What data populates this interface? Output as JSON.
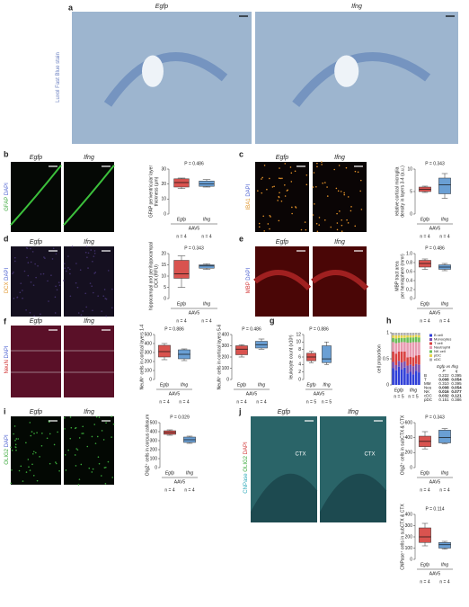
{
  "panels": [
    {
      "label": "a",
      "images": [
        "Egfp",
        "Ifng"
      ],
      "stain": [
        "Luxol Fast Blue stain"
      ],
      "stain_colors": [
        "#6a7fc0"
      ]
    },
    {
      "label": "b",
      "images": [
        "Egfp",
        "Ifng"
      ],
      "stain": [
        "GFAP",
        "DAPI"
      ],
      "stain_colors": [
        "#3aa83a",
        "#4a5fd0"
      ]
    },
    {
      "label": "c",
      "images": [
        "Egfp",
        "Ifng"
      ],
      "stain": [
        "IBA1",
        "DAPI"
      ],
      "stain_colors": [
        "#e0952a",
        "#4a5fd0"
      ]
    },
    {
      "label": "d",
      "images": [
        "Egfp",
        "Ifng"
      ],
      "stain": [
        "DCX",
        "DAPI"
      ],
      "stain_colors": [
        "#e0952a",
        "#4a5fd0"
      ]
    },
    {
      "label": "e",
      "images": [
        "Egfp",
        "Ifng"
      ],
      "stain": [
        "MBP",
        "DAPI"
      ],
      "stain_colors": [
        "#d03030",
        "#4a5fd0"
      ]
    },
    {
      "label": "f",
      "images": [
        "Egfp",
        "Ifng"
      ],
      "stain": [
        "NeuN",
        "DAPI"
      ],
      "stain_colors": [
        "#d03030",
        "#4a5fd0"
      ]
    },
    {
      "label": "g"
    },
    {
      "label": "h"
    },
    {
      "label": "i",
      "images": [
        "Egfp",
        "Ifng"
      ],
      "stain": [
        "OLIG2",
        "DAPI"
      ],
      "stain_colors": [
        "#3aa83a",
        "#4a5fd0"
      ]
    },
    {
      "label": "j",
      "images": [
        "Egfp",
        "Ifng"
      ],
      "stain": [
        "CNPase",
        "OLIG2",
        "DAPI"
      ],
      "stain_colors": [
        "#2aa8b8",
        "#3aa83a",
        "#d03030"
      ],
      "image_labels": [
        "CTX",
        "CTX"
      ]
    }
  ],
  "chart_data": [
    {
      "type": "box",
      "annotation": "P = 0.486",
      "ylabel": [
        "GFAP periventricular layer",
        "thickness (µm)"
      ],
      "categories": [
        "Egfp",
        "Ifng"
      ],
      "colors": [
        "#d9534f",
        "#6a9fd4"
      ],
      "group_label": "AAV5",
      "n_labels": [
        "n = 4",
        "n = 4"
      ],
      "min": [
        17,
        18
      ],
      "q1": [
        18,
        18.5
      ],
      "median": [
        21,
        20
      ],
      "q3": [
        23.5,
        22
      ],
      "max": [
        24,
        23
      ],
      "ylim": [
        0,
        30
      ],
      "yticks": [
        0,
        10,
        20,
        30
      ]
    },
    {
      "type": "box",
      "annotation": "P = 0.343",
      "ylabel": [
        "relative cortical microglia",
        "density in layers 3-4 (a.u.)"
      ],
      "categories": [
        "Egfp",
        "Ifng"
      ],
      "colors": [
        "#d9534f",
        "#6a9fd4"
      ],
      "group_label": "AAV5",
      "n_labels": [
        "n = 4",
        "n = 4"
      ],
      "min": [
        4.8,
        3.5
      ],
      "q1": [
        5,
        4.5
      ],
      "median": [
        5.5,
        6.5
      ],
      "q3": [
        6,
        8
      ],
      "max": [
        6.2,
        9
      ],
      "ylim": [
        0,
        10
      ],
      "yticks": [
        0,
        5,
        10
      ]
    },
    {
      "type": "box",
      "annotation": "P = 0.343",
      "ylabel": [
        "hippocampal and perihippocampal",
        "DCX (RFU)"
      ],
      "categories": [
        "Egfp",
        "Ifng"
      ],
      "colors": [
        "#d9534f",
        "#6a9fd4"
      ],
      "group_label": "AAV5",
      "n_labels": [
        "n = 4",
        "n = 4"
      ],
      "min": [
        5,
        13
      ],
      "q1": [
        9,
        13.5
      ],
      "median": [
        11,
        14.5
      ],
      "q3": [
        17,
        15
      ],
      "max": [
        19,
        15.5
      ],
      "ylim": [
        0,
        20
      ],
      "yticks": [
        0,
        5,
        10,
        15,
        20
      ]
    },
    {
      "type": "box",
      "annotation": "P = 0.486",
      "ylabel": [
        "MBP tract area",
        "per hemisphere (mm²)"
      ],
      "categories": [
        "Egfp",
        "Ifng"
      ],
      "colors": [
        "#d9534f",
        "#6a9fd4"
      ],
      "group_label": "AAV5",
      "n_labels": [
        "n = 4",
        "n = 4"
      ],
      "min": [
        0.65,
        0.62
      ],
      "q1": [
        0.7,
        0.65
      ],
      "median": [
        0.78,
        0.7
      ],
      "q3": [
        0.85,
        0.75
      ],
      "max": [
        0.88,
        0.78
      ],
      "ylim": [
        0,
        1
      ],
      "yticks": [
        0,
        0.2,
        0.4,
        0.6,
        0.8,
        {
          "value": 1,
          "label": "1.0"
        }
      ]
    },
    {
      "type": "box",
      "annotation": "P = 0.886",
      "ylabel": [
        "NeuN⁺ cells in cortical layers 1-4"
      ],
      "categories": [
        "Egfp",
        "Ifng"
      ],
      "colors": [
        "#d9534f",
        "#6a9fd4"
      ],
      "group_label": "AAV5",
      "n_labels": [
        "n = 4",
        "n = 4"
      ],
      "min": [
        220,
        210
      ],
      "q1": [
        250,
        230
      ],
      "median": [
        310,
        280
      ],
      "q3": [
        380,
        330
      ],
      "max": [
        400,
        340
      ],
      "ylim": [
        0,
        500
      ],
      "yticks": [
        0,
        100,
        200,
        300,
        400,
        500
      ]
    },
    {
      "type": "box",
      "annotation": "P = 0.486",
      "ylabel": [
        "NeuN⁺ cells in cortical layers 5-6"
      ],
      "categories": [
        "Egfp",
        "Ifng"
      ],
      "colors": [
        "#d9534f",
        "#6a9fd4"
      ],
      "group_label": "AAV5",
      "n_labels": [
        "n = 4",
        "n = 4"
      ],
      "min": [
        200,
        270
      ],
      "q1": [
        220,
        280
      ],
      "median": [
        270,
        310
      ],
      "q3": [
        300,
        340
      ],
      "max": [
        310,
        360
      ],
      "ylim": [
        0,
        400
      ],
      "yticks": [
        0,
        100,
        200,
        300,
        400
      ]
    },
    {
      "type": "box",
      "annotation": "P = 0.886",
      "ylabel": [
        "leukocyte count (x10³)"
      ],
      "categories": [
        "Egfp",
        "Ifng"
      ],
      "colors": [
        "#d9534f",
        "#6a9fd4"
      ],
      "group_label": "AAV5",
      "n_labels": [
        "n = 5",
        "n = 5"
      ],
      "min": [
        4.5,
        4
      ],
      "q1": [
        5,
        4.5
      ],
      "median": [
        6,
        5.5
      ],
      "q3": [
        7,
        9
      ],
      "max": [
        7.5,
        10
      ],
      "ylim": [
        0,
        12
      ],
      "yticks": [
        0,
        2,
        4,
        6,
        8,
        10,
        12
      ]
    },
    {
      "type": "stacked_bar",
      "ylabel": [
        "cell proportion"
      ],
      "categories": [
        null,
        null,
        null,
        null,
        null,
        null,
        null,
        null,
        null,
        null
      ],
      "group_names": [
        "Egfp",
        "Ifng"
      ],
      "n_labels": [
        "n = 5",
        "n = 5"
      ],
      "ylim": [
        0,
        1
      ],
      "yticks": [
        0,
        0.5,
        1
      ],
      "series": [
        {
          "name": "B cell",
          "color": "#2f3fd8",
          "values": [
            0.32,
            0.28,
            0.35,
            0.3,
            0.33,
            0.22,
            0.25,
            0.2,
            0.27,
            0.24
          ]
        },
        {
          "name": "Monocytes",
          "color": "#7b4fb0",
          "values": [
            0.12,
            0.1,
            0.11,
            0.13,
            0.12,
            0.15,
            0.14,
            0.16,
            0.13,
            0.15
          ]
        },
        {
          "name": "T cell",
          "color": "#d94040",
          "values": [
            0.2,
            0.22,
            0.18,
            0.21,
            0.19,
            0.16,
            0.15,
            0.17,
            0.16,
            0.18
          ]
        },
        {
          "name": "Neutrophil",
          "color": "#e89ab0",
          "values": [
            0.18,
            0.2,
            0.17,
            0.18,
            0.18,
            0.28,
            0.27,
            0.29,
            0.26,
            0.25
          ]
        },
        {
          "name": "NK cell",
          "color": "#6bbf59",
          "values": [
            0.08,
            0.09,
            0.09,
            0.08,
            0.08,
            0.1,
            0.1,
            0.09,
            0.1,
            0.09
          ]
        },
        {
          "name": "pDC",
          "color": "#e8d44d",
          "values": [
            0.05,
            0.06,
            0.05,
            0.05,
            0.05,
            0.04,
            0.04,
            0.04,
            0.04,
            0.04
          ]
        },
        {
          "name": "cDC",
          "color": "#b0b0b0",
          "values": [
            0.05,
            0.05,
            0.05,
            0.05,
            0.05,
            0.05,
            0.05,
            0.05,
            0.04,
            0.05
          ]
        }
      ],
      "table": {
        "header": "Egfp vs Ifng",
        "columns": [
          "P",
          "q"
        ],
        "rows": [
          [
            "B",
            "0.222",
            "0.395"
          ],
          [
            "T",
            "0.008",
            "0.054"
          ],
          [
            "MM",
            "0.310",
            "0.395"
          ],
          [
            "Neu",
            "0.008",
            "0.054"
          ],
          [
            "NK",
            "0.016",
            "0.077"
          ],
          [
            "cDC",
            "0.032",
            "0.121"
          ],
          [
            "pDC",
            "0.151",
            "0.386"
          ]
        ]
      }
    },
    {
      "type": "box",
      "annotation": "P = 0.029",
      "ylabel": [
        "Olig2⁺ cells in corpus callosum"
      ],
      "categories": [
        "Egfp",
        "Ifng"
      ],
      "colors": [
        "#d9534f",
        "#6a9fd4"
      ],
      "group_label": "AAV5",
      "n_labels": [
        "n = 4",
        "n = 4"
      ],
      "min": [
        360,
        270
      ],
      "q1": [
        370,
        280
      ],
      "median": [
        390,
        310
      ],
      "q3": [
        410,
        340
      ],
      "max": [
        420,
        350
      ],
      "ylim": [
        0,
        500
      ],
      "yticks": [
        0,
        100,
        200,
        300,
        400,
        500
      ]
    },
    {
      "type": "box",
      "annotation": "P = 0.343",
      "ylabel": [
        "Olig2⁺ cells in subCTX & CTX"
      ],
      "categories": [
        "Egfp",
        "Ifng"
      ],
      "colors": [
        "#d9534f",
        "#6a9fd4"
      ],
      "group_label": "AAV5",
      "n_labels": [
        "n = 4",
        "n = 4"
      ],
      "min": [
        250,
        320
      ],
      "q1": [
        280,
        330
      ],
      "median": [
        350,
        400
      ],
      "q3": [
        420,
        500
      ],
      "max": [
        480,
        520
      ],
      "ylim": [
        0,
        600
      ],
      "yticks": [
        0,
        200,
        400,
        600
      ]
    },
    {
      "type": "box",
      "annotation": "P = 0.114",
      "ylabel": [
        "CNPase⁺ cells in subCTX & CTX"
      ],
      "categories": [
        "Egfp",
        "Ifng"
      ],
      "colors": [
        "#d9534f",
        "#6a9fd4"
      ],
      "group_label": "AAV5",
      "n_labels": [
        "n = 4",
        "n = 4"
      ],
      "min": [
        120,
        90
      ],
      "q1": [
        150,
        100
      ],
      "median": [
        200,
        130
      ],
      "q3": [
        280,
        150
      ],
      "max": [
        320,
        160
      ],
      "ylim": [
        0,
        400
      ],
      "yticks": [
        0,
        100,
        200,
        300,
        400
      ]
    }
  ]
}
